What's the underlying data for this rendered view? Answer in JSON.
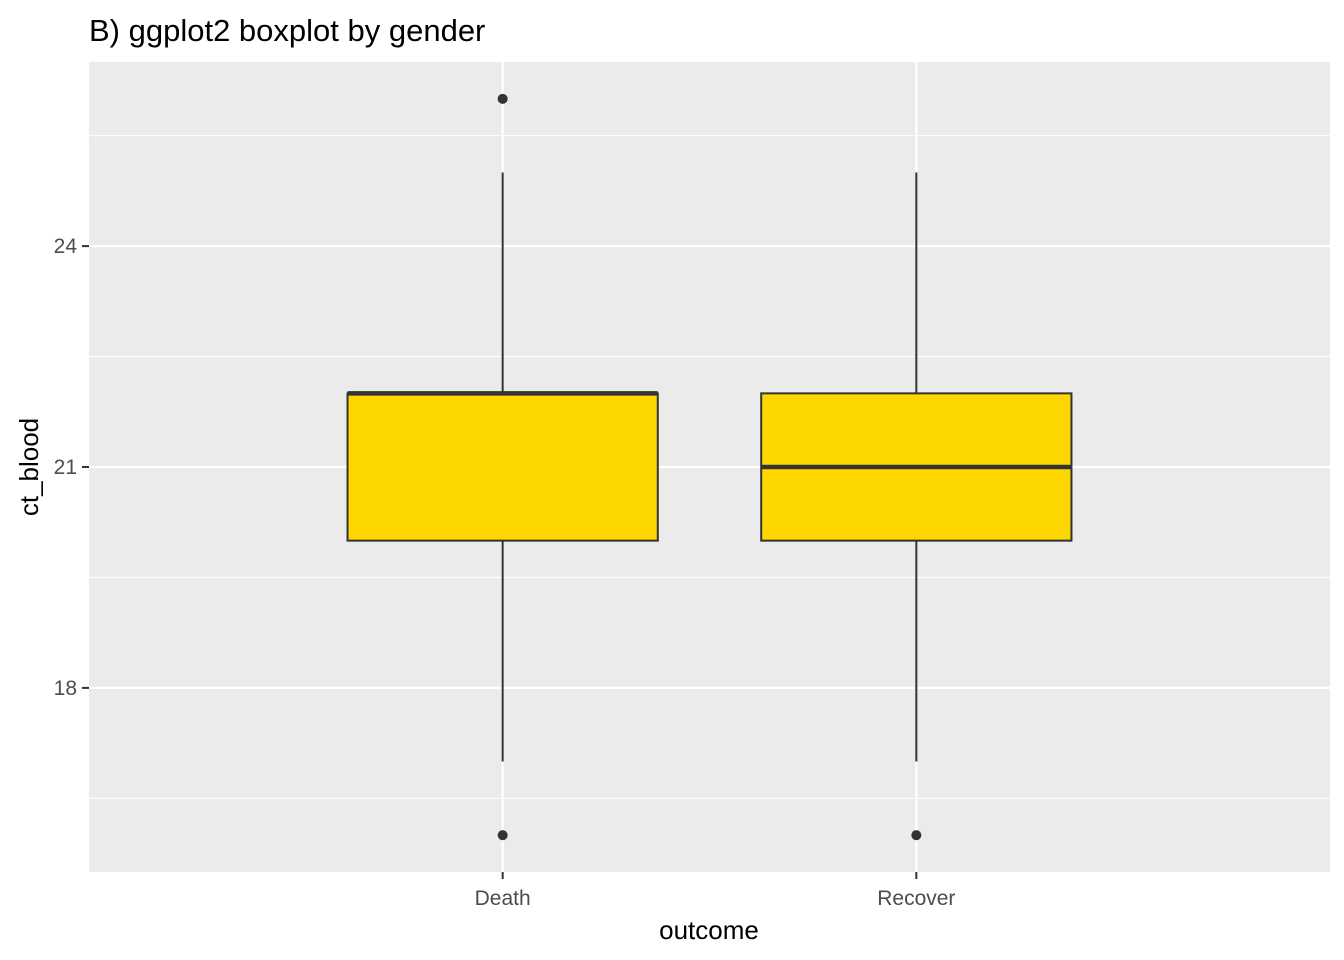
{
  "chart_data": {
    "type": "boxplot",
    "title": "B) ggplot2 boxplot by gender",
    "xlabel": "outcome",
    "ylabel": "ct_blood",
    "categories": [
      "Death",
      "Recover"
    ],
    "ylim": [
      15.5,
      26.5
    ],
    "yticks": [
      18,
      21,
      24
    ],
    "grid": true,
    "legend": "none",
    "box_fill": "#FFD700",
    "box_stroke": "#333333",
    "panel_bg": "#EBEBEB",
    "grid_color": "#FFFFFF",
    "boxes": [
      {
        "category": "Death",
        "whisker_low": 17,
        "q1": 20,
        "median": 22,
        "q3": 22,
        "whisker_high": 25,
        "outliers": [
          16,
          26
        ]
      },
      {
        "category": "Recover",
        "whisker_low": 17,
        "q1": 20,
        "median": 21,
        "q3": 22,
        "whisker_high": 25,
        "outliers": [
          16
        ]
      }
    ]
  }
}
